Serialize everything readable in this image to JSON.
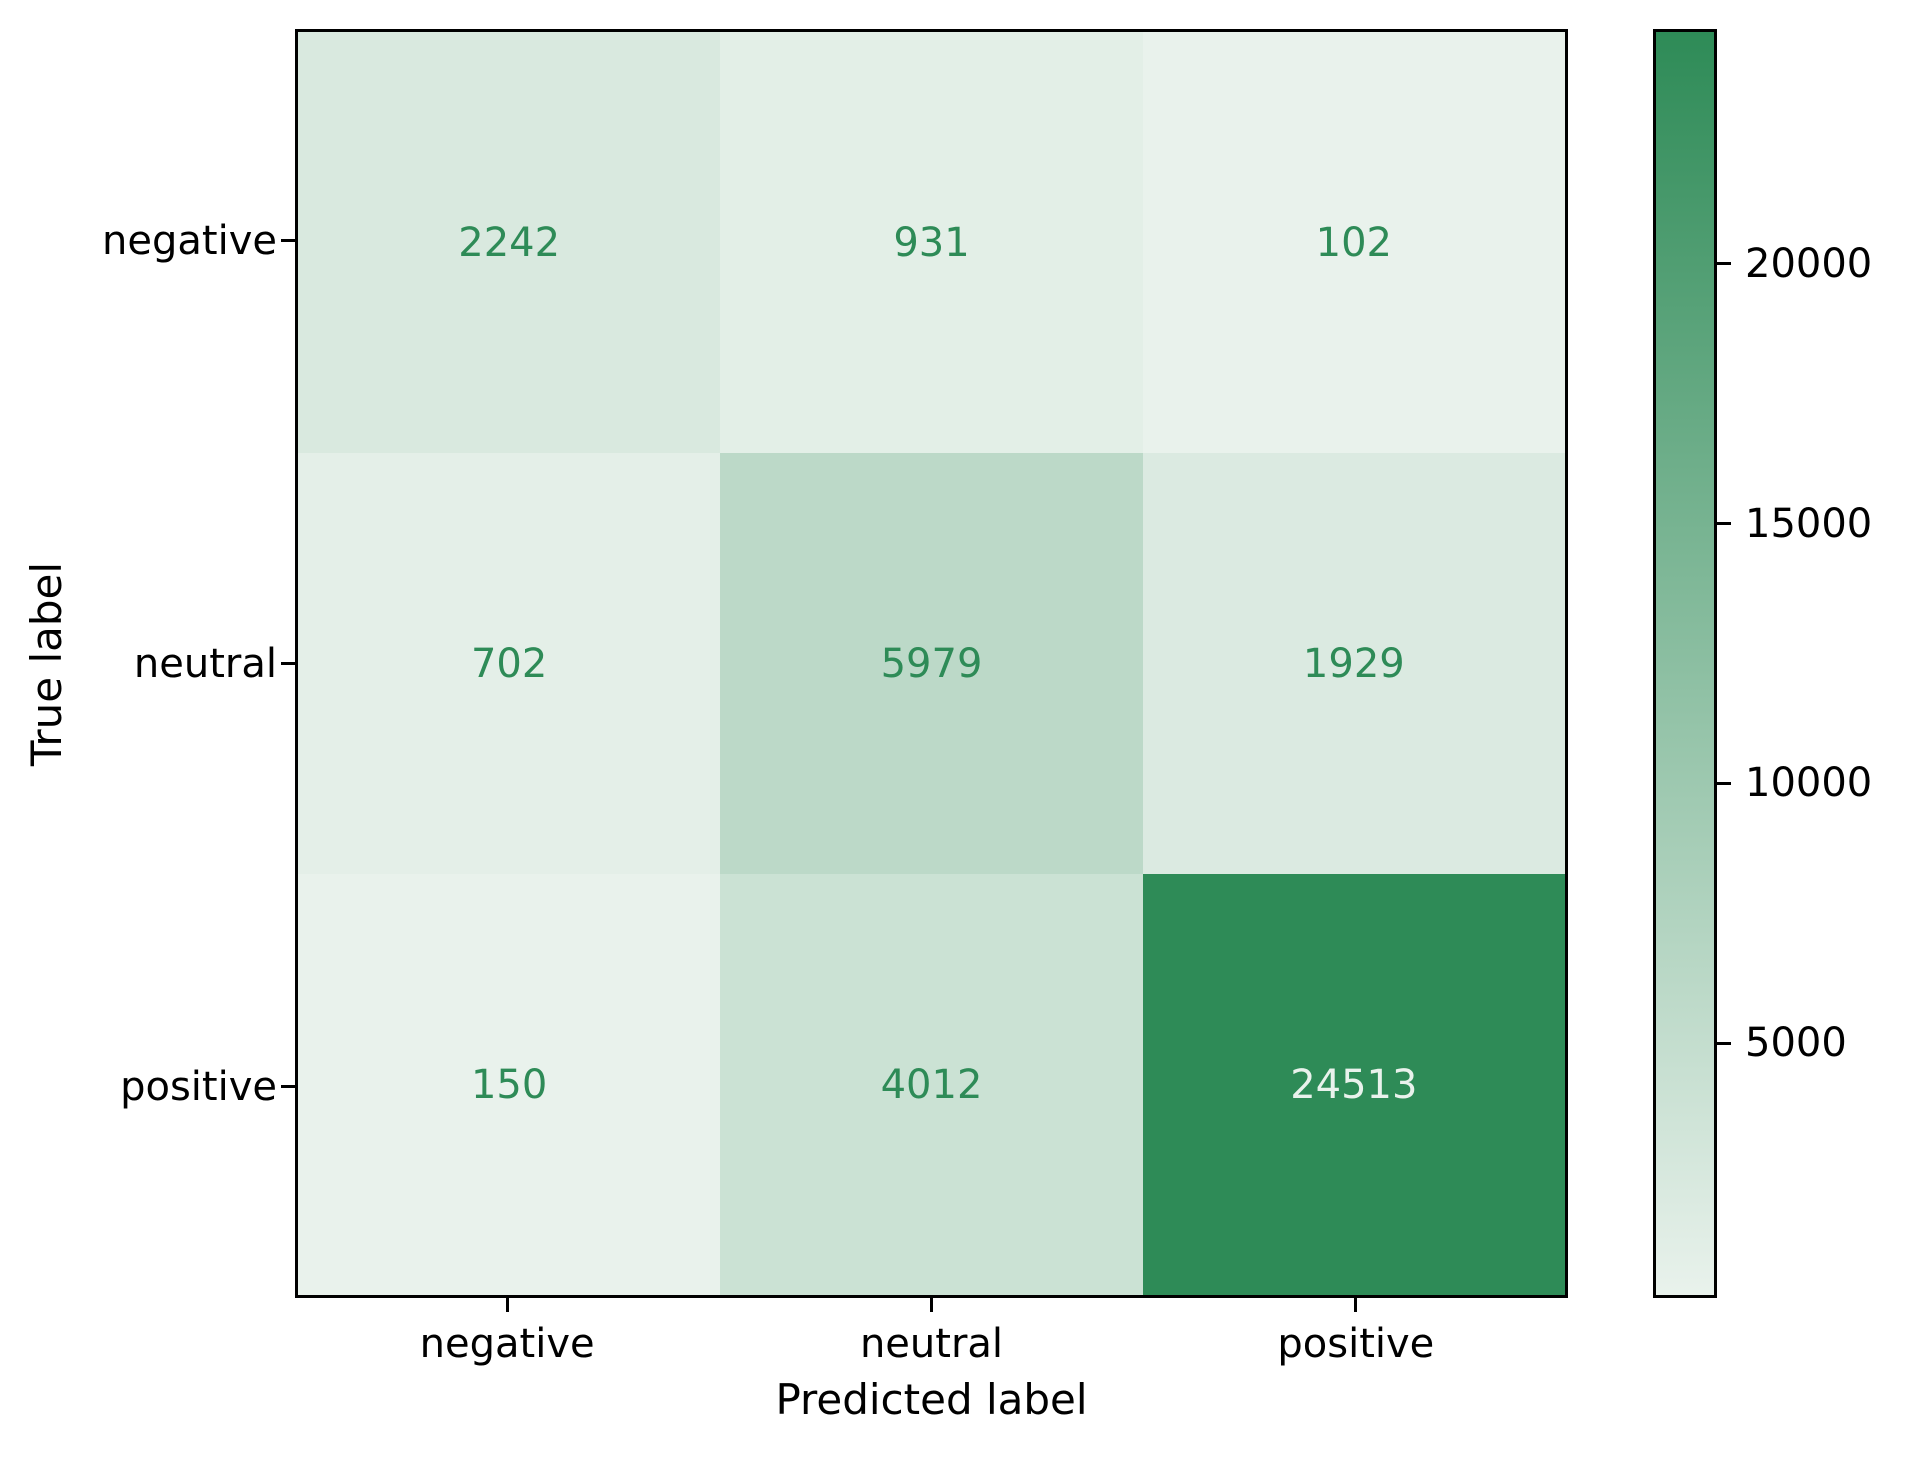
{
  "chart_data": {
    "type": "heatmap",
    "title": "",
    "xlabel": "Predicted label",
    "ylabel": "True label",
    "x_tick_labels": [
      "negative",
      "neutral",
      "positive"
    ],
    "y_tick_labels": [
      "negative",
      "neutral",
      "positive"
    ],
    "matrix": [
      [
        2242,
        931,
        102
      ],
      [
        702,
        5979,
        1929
      ],
      [
        150,
        4012,
        24513
      ]
    ],
    "vmin": 102,
    "vmax": 24513,
    "colorbar_ticks": [
      5000,
      10000,
      15000,
      20000
    ],
    "colorbar_tick_labels": [
      "5000",
      "10000",
      "15000",
      "20000"
    ],
    "legend_position": "right-colorbar",
    "grid": false
  },
  "colors": {
    "background": "#ffffff",
    "cmap_min": "#e9f2ec",
    "cmap_max": "#2e8b57",
    "cell_text_dark": "#2e8b57",
    "cell_text_light": "#e9f2ec",
    "axis_frame": "#000000",
    "tick_text": "#000000"
  }
}
